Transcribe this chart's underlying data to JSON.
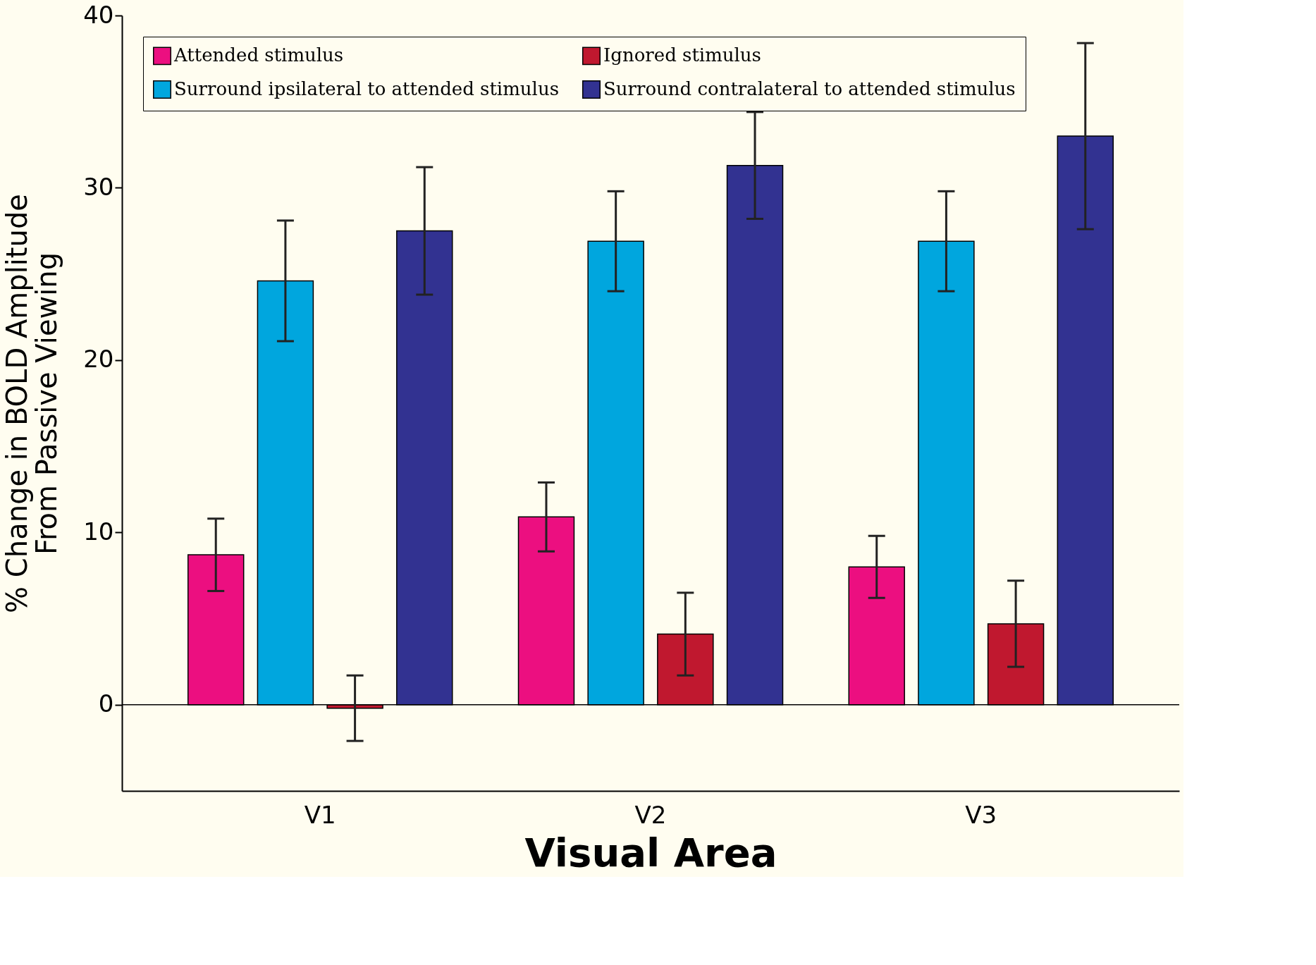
{
  "chart_data": {
    "type": "bar",
    "xlabel": "Visual Area",
    "ylabel": "% Change in BOLD Amplitude\nFrom Passive Viewing",
    "categories": [
      "V1",
      "V2",
      "V3"
    ],
    "series": [
      {
        "name": "Attended stimulus",
        "color": "#ec0f80",
        "values": [
          8.7,
          10.9,
          8.0
        ],
        "errors": [
          2.1,
          2.0,
          1.8
        ]
      },
      {
        "name": "Surround ipsilateral to attended stimulus",
        "color": "#00a6de",
        "values": [
          24.6,
          26.9,
          26.9
        ],
        "errors": [
          3.5,
          2.9,
          2.9
        ]
      },
      {
        "name": "Ignored stimulus",
        "color": "#c0182f",
        "values": [
          -0.2,
          4.1,
          4.7
        ],
        "errors": [
          1.9,
          2.4,
          2.5
        ]
      },
      {
        "name": "Surround contralateral to attended stimulus",
        "color": "#323291",
        "values": [
          27.5,
          31.3,
          33.0
        ],
        "errors": [
          3.7,
          3.1,
          5.4
        ]
      }
    ],
    "ylim": [
      -5,
      40
    ],
    "yticks": [
      0,
      10,
      20,
      30,
      40
    ],
    "ref_lines": [
      {
        "axis": "y",
        "value": 0,
        "color": "#000000"
      }
    ],
    "grid": false,
    "legend": "top left"
  }
}
